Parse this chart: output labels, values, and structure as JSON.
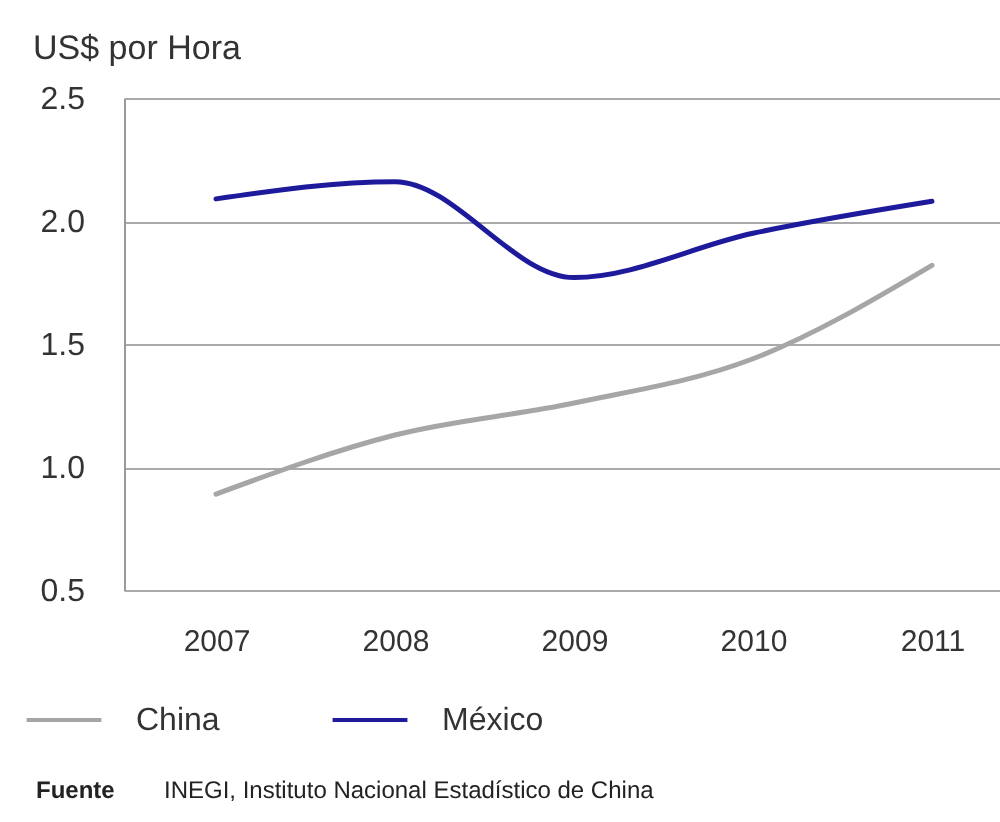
{
  "chart_data": {
    "type": "line",
    "ylabel": "US$ por Hora",
    "categories": [
      "2007",
      "2008",
      "2009",
      "2010",
      "2011"
    ],
    "series": [
      {
        "name": "China",
        "color": "#a6a6a6",
        "values": [
          0.89,
          1.13,
          1.26,
          1.44,
          1.82
        ]
      },
      {
        "name": "México",
        "color": "#1e1a9c",
        "values": [
          2.09,
          2.16,
          1.77,
          1.95,
          2.08
        ]
      }
    ],
    "ylim": [
      0.5,
      2.5
    ],
    "yticks": [
      0.5,
      {
        "value": 1,
        "label": "1.0"
      },
      1.5,
      {
        "value": 2,
        "label": "2.0"
      },
      2.5
    ],
    "grid": "y",
    "legend": "bottom",
    "annotations": [
      "Fuente",
      "INEGI, Instituto Nacional Estadístico de China"
    ]
  }
}
